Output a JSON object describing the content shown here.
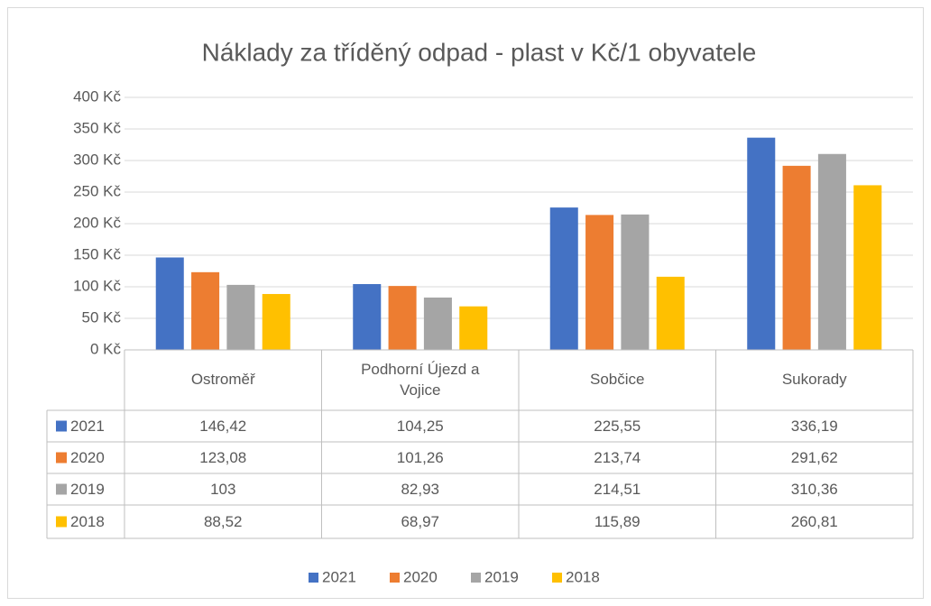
{
  "chart_data": {
    "type": "bar",
    "title": "Náklady za tříděný odpad - plast v Kč/1 obyvatele",
    "categories": [
      "Ostroměř",
      "Podhorní Újezd a Vojice",
      "Sobčice",
      "Sukorady"
    ],
    "series": [
      {
        "name": "2021",
        "color": "#4472c4",
        "values": [
          146.42,
          104.25,
          225.55,
          336.19
        ],
        "value_labels": [
          "146,42",
          "104,25",
          "225,55",
          "336,19"
        ]
      },
      {
        "name": "2020",
        "color": "#ed7d31",
        "values": [
          123.08,
          101.26,
          213.74,
          291.62
        ],
        "value_labels": [
          "123,08",
          "101,26",
          "213,74",
          "291,62"
        ]
      },
      {
        "name": "2019",
        "color": "#a5a5a5",
        "values": [
          103,
          82.93,
          214.51,
          310.36
        ],
        "value_labels": [
          "103",
          "82,93",
          "214,51",
          "310,36"
        ]
      },
      {
        "name": "2018",
        "color": "#ffc000",
        "values": [
          88.52,
          68.97,
          115.89,
          260.81
        ],
        "value_labels": [
          "88,52",
          "68,97",
          "115,89",
          "260,81"
        ]
      }
    ],
    "ylim": [
      0,
      400
    ],
    "yticks": [
      {
        "value": 0,
        "label": "0 Kč"
      },
      {
        "value": 50,
        "label": "50 Kč"
      },
      {
        "value": 100,
        "label": "100 Kč"
      },
      {
        "value": 150,
        "label": "150 Kč"
      },
      {
        "value": 200,
        "label": "200 Kč"
      },
      {
        "value": 250,
        "label": "250 Kč"
      },
      {
        "value": 300,
        "label": "300 Kč"
      },
      {
        "value": 350,
        "label": "350 Kč"
      },
      {
        "value": 400,
        "label": "400 Kč"
      }
    ],
    "grid": true,
    "legend": "bottom",
    "data_table": true
  }
}
